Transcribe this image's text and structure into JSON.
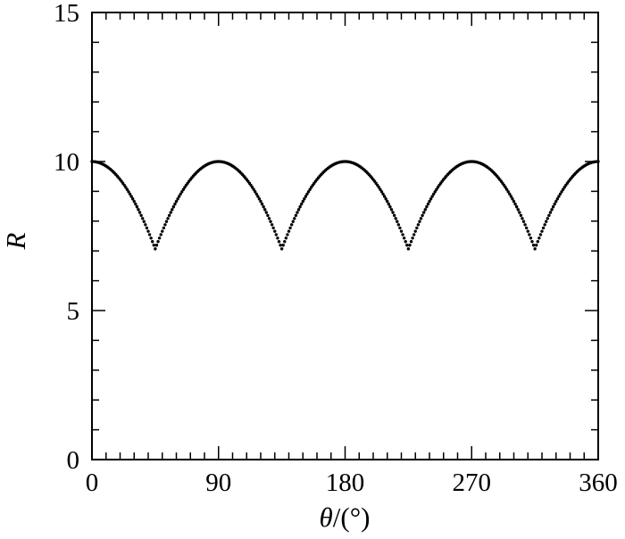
{
  "chart_data": {
    "type": "scatter",
    "xlabel_symbol": "θ",
    "xlabel_unit": "/(°)",
    "ylabel": "R",
    "xlim": [
      0,
      360
    ],
    "ylim": [
      0,
      15
    ],
    "x_ticks": [
      "0",
      "90",
      "180",
      "270",
      "360"
    ],
    "y_ticks": [
      "0",
      "5",
      "10",
      "15"
    ],
    "x_major_ticks": [
      0,
      90,
      180,
      270,
      360
    ],
    "y_major_ticks": [
      0,
      5,
      10,
      15
    ],
    "x_minor_step": 10,
    "y_minor_step": 1,
    "grid": false,
    "series": [
      {
        "function": "R = 10 * max(|cos(theta)|, |sin(theta)|), theta in degrees",
        "x_start": 0,
        "x_end": 360,
        "x_step": 1,
        "peak_value": 10,
        "min_value": 7.07,
        "color": "#000000"
      }
    ]
  }
}
